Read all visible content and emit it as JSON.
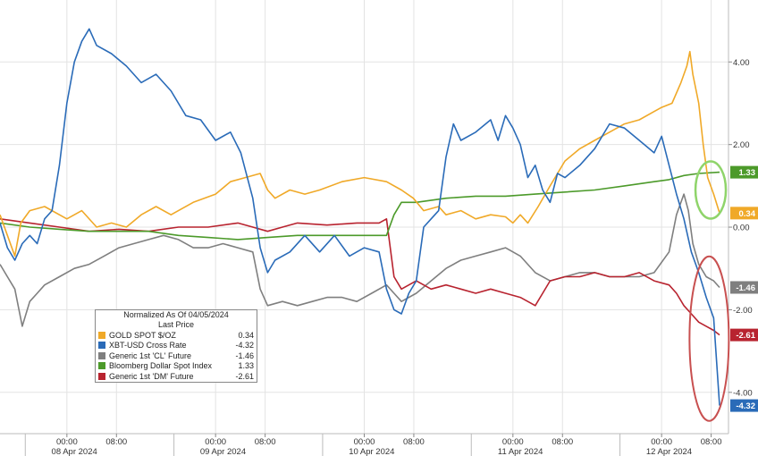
{
  "chart_data": {
    "type": "line",
    "ylim": [
      -5.0,
      5.5
    ],
    "y_ticks": [
      "4.00",
      "2.00",
      "0.00",
      "-2.00",
      "-4.00"
    ],
    "y_tick_values": [
      4,
      2,
      0,
      -2,
      -4
    ],
    "x_time_ticks": [
      "00:00",
      "08:00",
      "00:00",
      "08:00",
      "00:00",
      "08:00",
      "00:00",
      "08:00",
      "00:00",
      "08:00"
    ],
    "x_date_labels": [
      "08 Apr 2024",
      "09 Apr 2024",
      "10 Apr 2024",
      "11 Apr 2024",
      "12 Apr 2024"
    ],
    "legend": {
      "title": "Normalized As Of 04/05/2024",
      "subtitle": "Last Price",
      "entries": [
        {
          "name": "GOLD SPOT $/OZ",
          "value": "0.34",
          "color": "#f0a928"
        },
        {
          "name": "XBT-USD Cross Rate",
          "value": "-4.32",
          "color": "#2a6bb8"
        },
        {
          "name": "Generic 1st 'CL' Future",
          "value": "-1.46",
          "color": "#7f7f7f"
        },
        {
          "name": "Bloomberg Dollar Spot Index",
          "value": "1.33",
          "color": "#4c9a2a"
        },
        {
          "name": "Generic 1st 'DM' Future",
          "value": "-2.61",
          "color": "#b8232f"
        }
      ]
    },
    "last_value_labels": [
      {
        "text": "1.33",
        "value": 1.33,
        "color": "#4c9a2a"
      },
      {
        "text": "0.34",
        "value": 0.34,
        "color": "#f0a928"
      },
      {
        "text": "-1.46",
        "value": -1.46,
        "color": "#7f7f7f"
      },
      {
        "text": "-2.61",
        "value": -2.61,
        "color": "#b8232f"
      },
      {
        "text": "-4.32",
        "value": -4.32,
        "color": "#2a6bb8"
      }
    ],
    "grid": true,
    "series": [
      {
        "name": "GOLD SPOT $/OZ",
        "color": "#f0a928",
        "points": [
          [
            0,
            0.3
          ],
          [
            0.05,
            -0.2
          ],
          [
            0.1,
            -0.7
          ],
          [
            0.14,
            0.1
          ],
          [
            0.2,
            0.4
          ],
          [
            0.3,
            0.5
          ],
          [
            0.45,
            0.2
          ],
          [
            0.55,
            0.4
          ],
          [
            0.65,
            0.0
          ],
          [
            0.75,
            0.1
          ],
          [
            0.85,
            0.0
          ],
          [
            0.95,
            0.3
          ],
          [
            1.05,
            0.5
          ],
          [
            1.15,
            0.3
          ],
          [
            1.3,
            0.6
          ],
          [
            1.45,
            0.8
          ],
          [
            1.55,
            1.1
          ],
          [
            1.65,
            1.2
          ],
          [
            1.75,
            1.3
          ],
          [
            1.8,
            0.9
          ],
          [
            1.85,
            0.7
          ],
          [
            1.95,
            0.9
          ],
          [
            2.05,
            0.8
          ],
          [
            2.15,
            0.9
          ],
          [
            2.3,
            1.1
          ],
          [
            2.45,
            1.2
          ],
          [
            2.6,
            1.1
          ],
          [
            2.7,
            0.9
          ],
          [
            2.78,
            0.7
          ],
          [
            2.85,
            0.4
          ],
          [
            2.95,
            0.5
          ],
          [
            3.0,
            0.3
          ],
          [
            3.1,
            0.4
          ],
          [
            3.2,
            0.2
          ],
          [
            3.3,
            0.3
          ],
          [
            3.4,
            0.25
          ],
          [
            3.45,
            0.1
          ],
          [
            3.5,
            0.3
          ],
          [
            3.55,
            0.1
          ],
          [
            3.62,
            0.5
          ],
          [
            3.7,
            1.0
          ],
          [
            3.8,
            1.6
          ],
          [
            3.9,
            1.9
          ],
          [
            4.0,
            2.1
          ],
          [
            4.1,
            2.3
          ],
          [
            4.2,
            2.5
          ],
          [
            4.3,
            2.6
          ],
          [
            4.4,
            2.8
          ],
          [
            4.45,
            2.9
          ],
          [
            4.52,
            3.0
          ],
          [
            4.58,
            3.5
          ],
          [
            4.62,
            3.9
          ],
          [
            4.64,
            4.25
          ],
          [
            4.66,
            3.7
          ],
          [
            4.7,
            3.0
          ],
          [
            4.73,
            2.0
          ],
          [
            4.76,
            1.2
          ],
          [
            4.8,
            0.8
          ],
          [
            4.84,
            0.34
          ]
        ]
      },
      {
        "name": "XBT-USD Cross Rate",
        "color": "#2a6bb8",
        "points": [
          [
            0,
            0.1
          ],
          [
            0.05,
            -0.5
          ],
          [
            0.1,
            -0.8
          ],
          [
            0.15,
            -0.4
          ],
          [
            0.2,
            -0.2
          ],
          [
            0.25,
            -0.4
          ],
          [
            0.3,
            0.2
          ],
          [
            0.35,
            0.4
          ],
          [
            0.4,
            1.5
          ],
          [
            0.45,
            3.0
          ],
          [
            0.5,
            4.0
          ],
          [
            0.55,
            4.5
          ],
          [
            0.6,
            4.8
          ],
          [
            0.65,
            4.4
          ],
          [
            0.75,
            4.2
          ],
          [
            0.85,
            3.9
          ],
          [
            0.95,
            3.5
          ],
          [
            1.05,
            3.7
          ],
          [
            1.15,
            3.3
          ],
          [
            1.25,
            2.7
          ],
          [
            1.35,
            2.6
          ],
          [
            1.45,
            2.1
          ],
          [
            1.55,
            2.3
          ],
          [
            1.62,
            1.8
          ],
          [
            1.7,
            0.7
          ],
          [
            1.75,
            -0.5
          ],
          [
            1.8,
            -1.1
          ],
          [
            1.85,
            -0.8
          ],
          [
            1.95,
            -0.6
          ],
          [
            2.05,
            -0.2
          ],
          [
            2.15,
            -0.6
          ],
          [
            2.25,
            -0.2
          ],
          [
            2.35,
            -0.7
          ],
          [
            2.45,
            -0.5
          ],
          [
            2.55,
            -0.6
          ],
          [
            2.6,
            -1.5
          ],
          [
            2.65,
            -2.0
          ],
          [
            2.7,
            -2.1
          ],
          [
            2.75,
            -1.6
          ],
          [
            2.8,
            -1.3
          ],
          [
            2.85,
            0.0
          ],
          [
            2.9,
            0.2
          ],
          [
            2.95,
            0.4
          ],
          [
            3.0,
            1.7
          ],
          [
            3.05,
            2.5
          ],
          [
            3.1,
            2.1
          ],
          [
            3.2,
            2.3
          ],
          [
            3.3,
            2.6
          ],
          [
            3.35,
            2.1
          ],
          [
            3.4,
            2.7
          ],
          [
            3.45,
            2.4
          ],
          [
            3.5,
            2.0
          ],
          [
            3.55,
            1.2
          ],
          [
            3.6,
            1.5
          ],
          [
            3.65,
            0.9
          ],
          [
            3.7,
            0.6
          ],
          [
            3.75,
            1.3
          ],
          [
            3.8,
            1.2
          ],
          [
            3.9,
            1.5
          ],
          [
            4.0,
            1.9
          ],
          [
            4.1,
            2.5
          ],
          [
            4.2,
            2.4
          ],
          [
            4.3,
            2.1
          ],
          [
            4.4,
            1.8
          ],
          [
            4.45,
            2.2
          ],
          [
            4.5,
            1.5
          ],
          [
            4.55,
            0.8
          ],
          [
            4.6,
            0.2
          ],
          [
            4.65,
            -0.6
          ],
          [
            4.7,
            -1.1
          ],
          [
            4.75,
            -1.7
          ],
          [
            4.8,
            -2.2
          ],
          [
            4.84,
            -4.32
          ]
        ]
      },
      {
        "name": "Generic 1st 'CL' Future",
        "color": "#7f7f7f",
        "points": [
          [
            0,
            -0.9
          ],
          [
            0.05,
            -1.2
          ],
          [
            0.1,
            -1.5
          ],
          [
            0.15,
            -2.4
          ],
          [
            0.2,
            -1.8
          ],
          [
            0.25,
            -1.6
          ],
          [
            0.3,
            -1.4
          ],
          [
            0.4,
            -1.2
          ],
          [
            0.5,
            -1.0
          ],
          [
            0.6,
            -0.9
          ],
          [
            0.7,
            -0.7
          ],
          [
            0.8,
            -0.5
          ],
          [
            0.9,
            -0.4
          ],
          [
            1.0,
            -0.3
          ],
          [
            1.1,
            -0.2
          ],
          [
            1.2,
            -0.3
          ],
          [
            1.3,
            -0.5
          ],
          [
            1.4,
            -0.5
          ],
          [
            1.5,
            -0.4
          ],
          [
            1.6,
            -0.5
          ],
          [
            1.7,
            -0.6
          ],
          [
            1.75,
            -1.5
          ],
          [
            1.8,
            -1.9
          ],
          [
            1.9,
            -1.8
          ],
          [
            2.0,
            -1.9
          ],
          [
            2.1,
            -1.8
          ],
          [
            2.2,
            -1.7
          ],
          [
            2.3,
            -1.7
          ],
          [
            2.4,
            -1.8
          ],
          [
            2.5,
            -1.6
          ],
          [
            2.6,
            -1.4
          ],
          [
            2.65,
            -1.6
          ],
          [
            2.7,
            -1.8
          ],
          [
            2.8,
            -1.6
          ],
          [
            2.9,
            -1.3
          ],
          [
            3.0,
            -1.0
          ],
          [
            3.1,
            -0.8
          ],
          [
            3.2,
            -0.7
          ],
          [
            3.3,
            -0.6
          ],
          [
            3.4,
            -0.5
          ],
          [
            3.5,
            -0.7
          ],
          [
            3.6,
            -1.1
          ],
          [
            3.7,
            -1.3
          ],
          [
            3.8,
            -1.2
          ],
          [
            3.9,
            -1.1
          ],
          [
            4.0,
            -1.1
          ],
          [
            4.1,
            -1.2
          ],
          [
            4.2,
            -1.2
          ],
          [
            4.3,
            -1.2
          ],
          [
            4.4,
            -1.1
          ],
          [
            4.5,
            -0.6
          ],
          [
            4.55,
            0.3
          ],
          [
            4.6,
            0.8
          ],
          [
            4.63,
            0.4
          ],
          [
            4.66,
            -0.4
          ],
          [
            4.7,
            -0.9
          ],
          [
            4.75,
            -1.2
          ],
          [
            4.8,
            -1.3
          ],
          [
            4.84,
            -1.46
          ]
        ]
      },
      {
        "name": "Bloomberg Dollar Spot Index",
        "color": "#4c9a2a",
        "points": [
          [
            0,
            0.1
          ],
          [
            0.2,
            0.0
          ],
          [
            0.4,
            -0.05
          ],
          [
            0.6,
            -0.1
          ],
          [
            0.8,
            -0.1
          ],
          [
            1.0,
            -0.1
          ],
          [
            1.2,
            -0.2
          ],
          [
            1.4,
            -0.25
          ],
          [
            1.6,
            -0.3
          ],
          [
            1.8,
            -0.25
          ],
          [
            2.0,
            -0.2
          ],
          [
            2.2,
            -0.2
          ],
          [
            2.4,
            -0.2
          ],
          [
            2.6,
            -0.2
          ],
          [
            2.65,
            0.3
          ],
          [
            2.7,
            0.6
          ],
          [
            2.8,
            0.6
          ],
          [
            3.0,
            0.7
          ],
          [
            3.2,
            0.75
          ],
          [
            3.4,
            0.75
          ],
          [
            3.6,
            0.8
          ],
          [
            3.8,
            0.85
          ],
          [
            4.0,
            0.9
          ],
          [
            4.2,
            1.0
          ],
          [
            4.4,
            1.1
          ],
          [
            4.5,
            1.15
          ],
          [
            4.6,
            1.25
          ],
          [
            4.7,
            1.3
          ],
          [
            4.84,
            1.33
          ]
        ]
      },
      {
        "name": "Generic 1st 'DM' Future",
        "color": "#b8232f",
        "points": [
          [
            0,
            0.2
          ],
          [
            0.2,
            0.1
          ],
          [
            0.4,
            0.0
          ],
          [
            0.6,
            -0.1
          ],
          [
            0.8,
            -0.05
          ],
          [
            1.0,
            -0.1
          ],
          [
            1.2,
            0.0
          ],
          [
            1.4,
            0.0
          ],
          [
            1.6,
            0.1
          ],
          [
            1.7,
            0.0
          ],
          [
            1.8,
            -0.1
          ],
          [
            1.9,
            0.0
          ],
          [
            2.0,
            0.1
          ],
          [
            2.2,
            0.05
          ],
          [
            2.4,
            0.1
          ],
          [
            2.55,
            0.1
          ],
          [
            2.6,
            0.2
          ],
          [
            2.65,
            -1.2
          ],
          [
            2.7,
            -1.5
          ],
          [
            2.8,
            -1.3
          ],
          [
            2.9,
            -1.5
          ],
          [
            3.0,
            -1.4
          ],
          [
            3.1,
            -1.5
          ],
          [
            3.2,
            -1.6
          ],
          [
            3.3,
            -1.5
          ],
          [
            3.4,
            -1.6
          ],
          [
            3.5,
            -1.7
          ],
          [
            3.55,
            -1.8
          ],
          [
            3.6,
            -1.9
          ],
          [
            3.65,
            -1.6
          ],
          [
            3.7,
            -1.3
          ],
          [
            3.8,
            -1.2
          ],
          [
            3.9,
            -1.2
          ],
          [
            4.0,
            -1.1
          ],
          [
            4.1,
            -1.2
          ],
          [
            4.2,
            -1.2
          ],
          [
            4.3,
            -1.1
          ],
          [
            4.4,
            -1.3
          ],
          [
            4.5,
            -1.4
          ],
          [
            4.55,
            -1.6
          ],
          [
            4.6,
            -1.9
          ],
          [
            4.65,
            -2.1
          ],
          [
            4.7,
            -2.3
          ],
          [
            4.75,
            -2.4
          ],
          [
            4.8,
            -2.5
          ],
          [
            4.84,
            -2.61
          ]
        ]
      }
    ],
    "highlights": [
      {
        "name": "green-ellipse",
        "color": "#8fd46a"
      },
      {
        "name": "red-ellipse",
        "color": "#c85050"
      }
    ]
  }
}
